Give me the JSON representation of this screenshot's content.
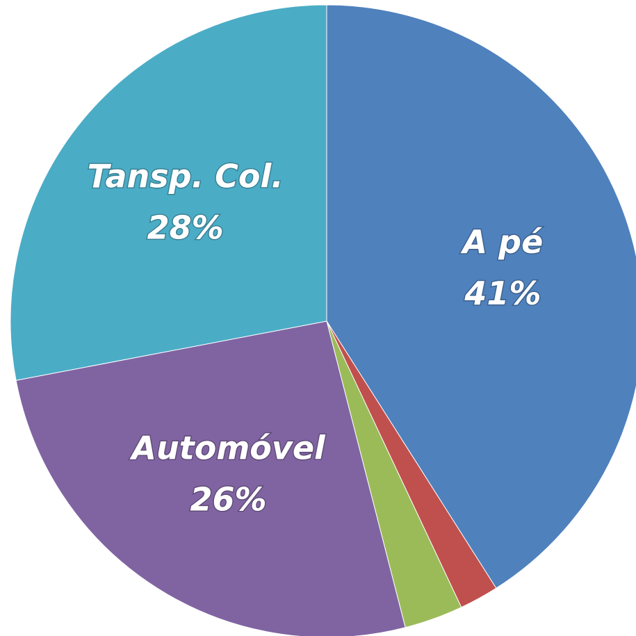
{
  "chart_data": {
    "type": "pie",
    "categories": [
      "A pé",
      null,
      null,
      "Automóvel",
      "Tansp. Col."
    ],
    "values": [
      41,
      2,
      3,
      26,
      28
    ],
    "value_labels": [
      "41%",
      null,
      null,
      "26%",
      "28%"
    ],
    "colors": [
      "#4f81bd",
      "#c0504d",
      "#9bbb59",
      "#8064a2",
      "#4bacc6"
    ]
  }
}
